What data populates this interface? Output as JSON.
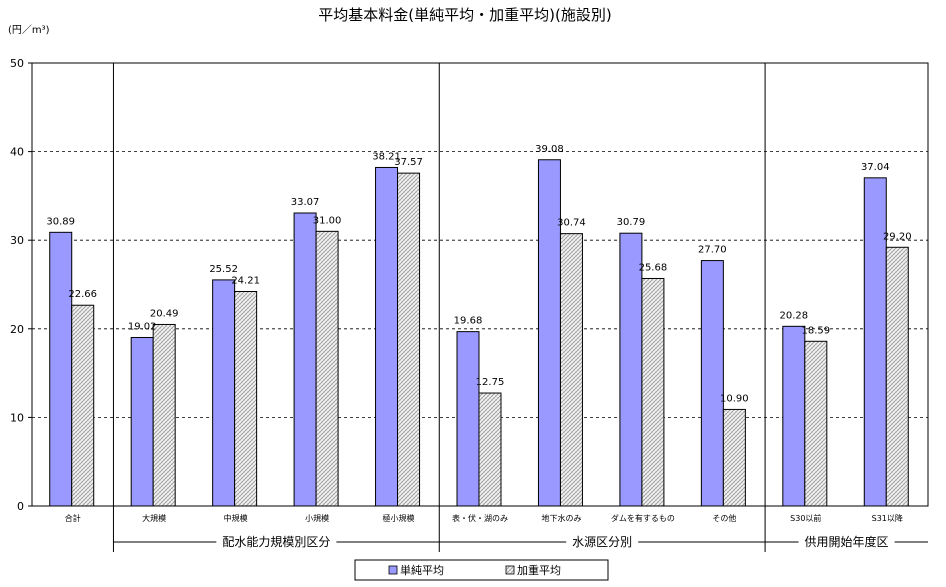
{
  "chart_data": {
    "type": "bar",
    "title": "平均基本料金(単純平均・加重平均)(施設別)",
    "ylabel": "(円／m³)",
    "ylim": [
      0,
      50
    ],
    "yticks": [
      "0",
      "10",
      "20",
      "30",
      "40",
      "50"
    ],
    "grid": true,
    "legend_position": "bottom",
    "categories": [
      "合計",
      "大規模",
      "中規模",
      "小規模",
      "極小規模",
      "表・伏・湖のみ",
      "地下水のみ",
      "ダムを有するもの",
      "その他",
      "S30以前",
      "S31以降"
    ],
    "groups": [
      {
        "label": "配水能力規模別区分",
        "start": 1,
        "end": 4
      },
      {
        "label": "水源区分別",
        "start": 5,
        "end": 8
      },
      {
        "label": "供用開始年度区",
        "start": 9,
        "end": 10
      }
    ],
    "series": [
      {
        "name": "単純平均",
        "color": "#9999ff",
        "values": [
          30.89,
          19.02,
          25.52,
          33.07,
          38.21,
          19.68,
          39.08,
          30.79,
          27.7,
          20.28,
          37.04
        ],
        "labels": [
          "30.89",
          "19.02",
          "25.52",
          "33.07",
          "38.21",
          "19.68",
          "39.08",
          "30.79",
          "27.70",
          "20.28",
          "37.04"
        ]
      },
      {
        "name": "加重平均",
        "color": "#e6e6e6",
        "values": [
          22.66,
          20.49,
          24.21,
          31.0,
          37.57,
          12.75,
          30.74,
          25.68,
          10.9,
          18.59,
          29.2
        ],
        "labels": [
          "22.66",
          "20.49",
          "24.21",
          "31.00",
          "37.57",
          "12.75",
          "30.74",
          "25.68",
          "10.90",
          "18.59",
          "29.20"
        ]
      }
    ]
  }
}
